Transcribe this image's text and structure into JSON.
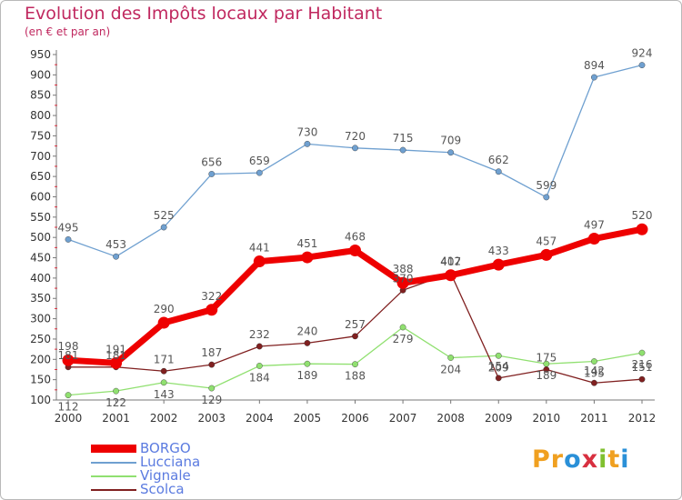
{
  "title": "Evolution des Impôts locaux par Habitant",
  "subtitle": "(en € et par an)",
  "logo": {
    "text": "Proxiti",
    "letters": [
      "P",
      "r",
      "o",
      "x",
      "i",
      "t",
      "i"
    ],
    "colors": [
      "#f0a020",
      "#f0a020",
      "#2a90d8",
      "#d83040",
      "#80c030",
      "#f0a020",
      "#2a90d8"
    ]
  },
  "chart_data": {
    "type": "line",
    "x": [
      "2000",
      "2001",
      "2002",
      "2003",
      "2004",
      "2005",
      "2006",
      "2007",
      "2008",
      "2009",
      "2010",
      "2011",
      "2012"
    ],
    "ylim": [
      100,
      950
    ],
    "yticks": [
      100,
      150,
      200,
      250,
      300,
      350,
      400,
      450,
      500,
      550,
      600,
      650,
      700,
      750,
      800,
      850,
      900,
      950
    ],
    "grid": false,
    "legend_position": "bottom-left",
    "series": [
      {
        "name": "BORGO",
        "color": "#ee0000",
        "values": [
          198,
          191,
          290,
          322,
          441,
          451,
          468,
          388,
          407,
          433,
          457,
          497,
          520
        ]
      },
      {
        "name": "Lucciana",
        "color": "#6fa0d0",
        "values": [
          495,
          453,
          525,
          656,
          659,
          730,
          720,
          715,
          709,
          662,
          599,
          894,
          924
        ]
      },
      {
        "name": "Vignale",
        "color": "#90e070",
        "values": [
          112,
          122,
          143,
          129,
          184,
          189,
          188,
          279,
          204,
          209,
          189,
          195,
          216
        ]
      },
      {
        "name": "Scolca",
        "color": "#802020",
        "values": [
          181,
          181,
          171,
          187,
          232,
          240,
          257,
          370,
          412,
          154,
          175,
          142,
          151
        ]
      }
    ]
  }
}
